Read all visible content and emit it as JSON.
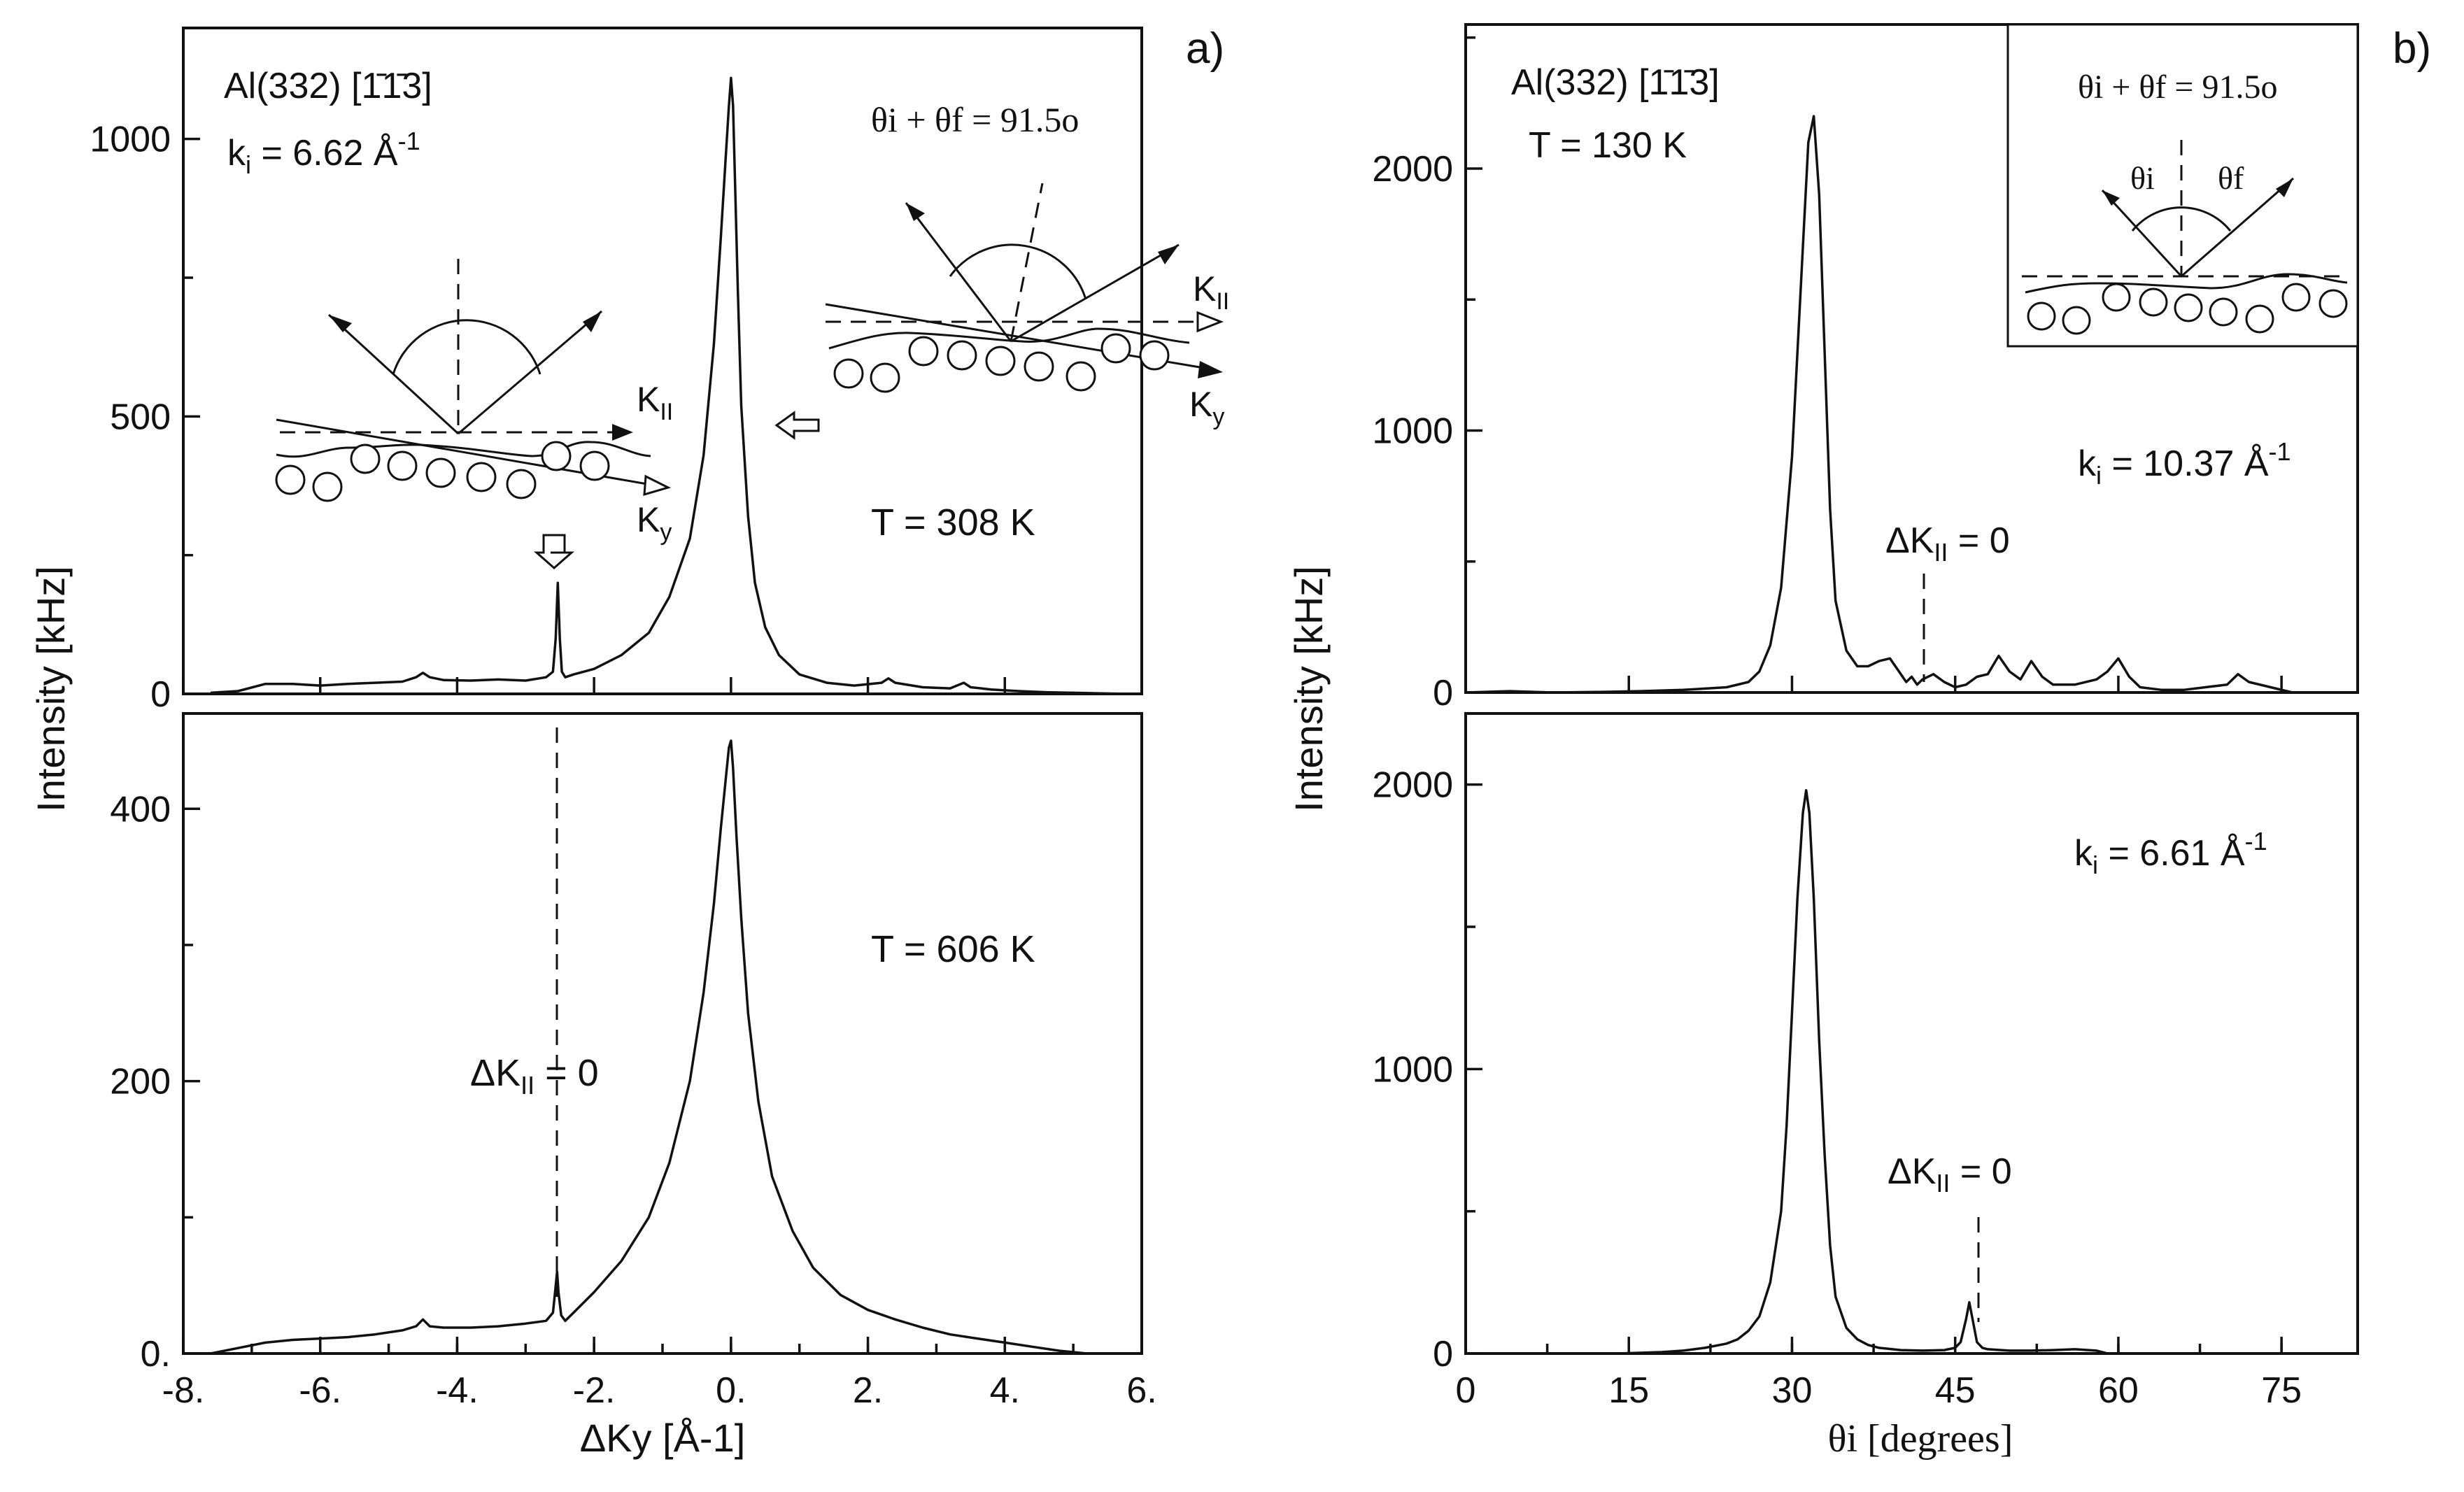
{
  "chart_data": [
    {
      "panel": "a) top",
      "type": "line",
      "panel_label": "a)",
      "ylabel": "Intensity [kHz]",
      "xlim": [
        -8,
        6
      ],
      "ylim": [
        0,
        1200
      ],
      "yticks": [
        0,
        500,
        1000
      ],
      "annotations": {
        "surface": "Al(332) [",
        "surface_dir": "1̄1̄3",
        "surface_end": "]",
        "ki_text": "k",
        "ki_sub": "i",
        "ki_value": " = 6.62 Å",
        "ki_sup": "-1",
        "theta_sum": "θi + θf = 91.5o",
        "temp": "T = 308 K",
        "k_par": "K",
        "k_par_sub": "II",
        "k_y": "K",
        "k_y_sub": "y"
      },
      "series": [
        {
          "x": [
            -7.6,
            -7.2,
            -6.8,
            -6.4,
            -6.0,
            -5.6,
            -5.2,
            -4.8,
            -4.6,
            -4.5,
            -4.4,
            -4.2,
            -3.8,
            -3.4,
            -3.0,
            -2.7,
            -2.6,
            -2.56,
            -2.53,
            -2.5,
            -2.47,
            -2.42,
            -2.3,
            -2.0,
            -1.6,
            -1.2,
            -0.9,
            -0.6,
            -0.4,
            -0.25,
            -0.15,
            -0.08,
            -0.03,
            0.0,
            0.03,
            0.06,
            0.1,
            0.15,
            0.25,
            0.35,
            0.5,
            0.7,
            1.0,
            1.4,
            1.8,
            2.2,
            2.3,
            2.4,
            2.8,
            3.2,
            3.4,
            3.5,
            3.8,
            4.2,
            4.6,
            5.0,
            5.4,
            5.8
          ],
          "y": [
            2,
            5,
            18,
            18,
            15,
            18,
            20,
            22,
            30,
            38,
            30,
            25,
            24,
            26,
            24,
            30,
            40,
            100,
            200,
            100,
            40,
            30,
            35,
            45,
            70,
            110,
            175,
            280,
            430,
            630,
            820,
            960,
            1060,
            1110,
            1060,
            920,
            730,
            520,
            320,
            200,
            120,
            70,
            35,
            20,
            15,
            20,
            28,
            20,
            12,
            10,
            20,
            12,
            8,
            5,
            3,
            2,
            1,
            0
          ]
        }
      ]
    },
    {
      "panel": "a) bottom",
      "type": "line",
      "xlabel": "ΔKy [Å-1]",
      "xlim": [
        -8,
        6
      ],
      "ylim": [
        0,
        470
      ],
      "xticks": [
        "-8.",
        "-6.",
        "-4.",
        "-2.",
        "0.",
        "2.",
        "4.",
        "6."
      ],
      "yticks": [
        0,
        200,
        400
      ],
      "ytick_zero_label": "0.",
      "annotations": {
        "temp": "T = 606 K",
        "dk_label": "ΔK",
        "dk_sub": "II",
        "dk_value": " = 0"
      },
      "series": [
        {
          "x": [
            -7.6,
            -7.2,
            -6.8,
            -6.4,
            -6.0,
            -5.6,
            -5.2,
            -4.8,
            -4.6,
            -4.5,
            -4.4,
            -4.2,
            -3.8,
            -3.4,
            -3.0,
            -2.7,
            -2.6,
            -2.57,
            -2.54,
            -2.52,
            -2.48,
            -2.42,
            -2.3,
            -2.0,
            -1.6,
            -1.2,
            -0.9,
            -0.6,
            -0.4,
            -0.25,
            -0.15,
            -0.08,
            -0.03,
            0.0,
            0.03,
            0.08,
            0.15,
            0.25,
            0.4,
            0.6,
            0.9,
            1.2,
            1.6,
            2.0,
            2.4,
            2.8,
            3.2,
            3.6,
            4.0,
            4.4,
            4.8,
            5.2
          ],
          "y": [
            0,
            4,
            8,
            10,
            11,
            12,
            14,
            17,
            20,
            25,
            20,
            19,
            19,
            20,
            22,
            24,
            30,
            45,
            60,
            45,
            28,
            24,
            30,
            45,
            68,
            100,
            140,
            200,
            265,
            330,
            385,
            420,
            445,
            450,
            430,
            380,
            320,
            250,
            185,
            130,
            90,
            63,
            43,
            32,
            25,
            19,
            14,
            11,
            8,
            5,
            2,
            0
          ]
        }
      ]
    },
    {
      "panel": "b) top",
      "type": "line",
      "panel_label": "b)",
      "ylabel": "Intensity [kHz]",
      "xlim": [
        0,
        82
      ],
      "ylim": [
        0,
        2550
      ],
      "yticks": [
        0,
        1000,
        2000
      ],
      "annotations": {
        "surface": "Al(332) [",
        "surface_dir": "1̄1̄3",
        "surface_end": "]",
        "temp": "T = 130 K",
        "theta_sum": "θi + θf = 91.5o",
        "theta_i": "θi",
        "theta_f": "θf",
        "ki_text": "k",
        "ki_sub": "i",
        "ki_value": " = 10.37 Å",
        "ki_sup": "-1",
        "dk_label": "ΔK",
        "dk_sub": "II",
        "dk_value": " = 0"
      },
      "series": [
        {
          "x": [
            0,
            4,
            8,
            12,
            16,
            20,
            24,
            26,
            27,
            28,
            29,
            30,
            31,
            31.5,
            32,
            32.5,
            33,
            33.5,
            34,
            35,
            36,
            37,
            38,
            39,
            40,
            40.5,
            41,
            41.5,
            42,
            43,
            44,
            45,
            46,
            47,
            48,
            49,
            50,
            51,
            52,
            53,
            54,
            56,
            58,
            59,
            60,
            61,
            62,
            64,
            66,
            68,
            70,
            71,
            72,
            74,
            76
          ],
          "y": [
            0,
            5,
            0,
            2,
            5,
            10,
            20,
            40,
            80,
            180,
            400,
            900,
            1700,
            2100,
            2200,
            1900,
            1300,
            700,
            350,
            160,
            100,
            100,
            120,
            130,
            70,
            40,
            60,
            30,
            50,
            70,
            40,
            20,
            30,
            60,
            70,
            140,
            80,
            50,
            120,
            60,
            30,
            30,
            50,
            80,
            130,
            60,
            20,
            10,
            10,
            20,
            30,
            70,
            40,
            20,
            0
          ]
        }
      ]
    },
    {
      "panel": "b) bottom",
      "type": "line",
      "xlabel": "θi [degrees]",
      "xlim": [
        0,
        82
      ],
      "ylim": [
        0,
        2250
      ],
      "xticks": [
        0,
        15,
        30,
        45,
        60,
        75
      ],
      "yticks": [
        0,
        1000,
        2000
      ],
      "annotations": {
        "ki_text": "k",
        "ki_sub": "i",
        "ki_value": " = 6.61 Å",
        "ki_sup": "-1",
        "dk_label": "ΔK",
        "dk_sub": "II",
        "dk_value": " = 0"
      },
      "series": [
        {
          "x": [
            14,
            18,
            20,
            22,
            24,
            25,
            26,
            27,
            28,
            29,
            29.5,
            30,
            30.5,
            31,
            31.3,
            31.6,
            32,
            32.5,
            33,
            33.5,
            34,
            35,
            36,
            37,
            38,
            40,
            42,
            44,
            45,
            45.5,
            46,
            46.3,
            46.6,
            47,
            47.5,
            48,
            50,
            52,
            54,
            56,
            58,
            59
          ],
          "y": [
            0,
            5,
            10,
            20,
            35,
            50,
            80,
            130,
            250,
            500,
            800,
            1200,
            1600,
            1900,
            1980,
            1900,
            1600,
            1100,
            700,
            380,
            200,
            90,
            50,
            30,
            20,
            12,
            10,
            12,
            20,
            40,
            120,
            180,
            120,
            40,
            20,
            15,
            10,
            10,
            12,
            15,
            10,
            0
          ]
        }
      ]
    }
  ]
}
